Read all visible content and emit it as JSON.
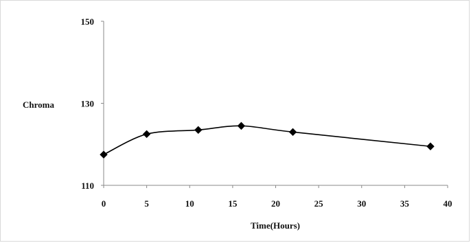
{
  "chart_data": {
    "type": "line",
    "title": "",
    "xlabel": "Time(Hours)",
    "ylabel": "Chroma",
    "xlim": [
      0,
      40
    ],
    "ylim": [
      110,
      150
    ],
    "xticks": [
      0,
      5,
      10,
      15,
      20,
      25,
      30,
      35,
      40
    ],
    "yticks": [
      110,
      130,
      150
    ],
    "grid": false,
    "legend": "none",
    "series": [
      {
        "x": [
          0,
          5,
          11,
          16,
          22,
          38
        ],
        "y": [
          117.5,
          122.5,
          123.5,
          124.5,
          123,
          119.5
        ],
        "color": "#000000",
        "marker": "diamond",
        "smooth": true
      }
    ]
  }
}
